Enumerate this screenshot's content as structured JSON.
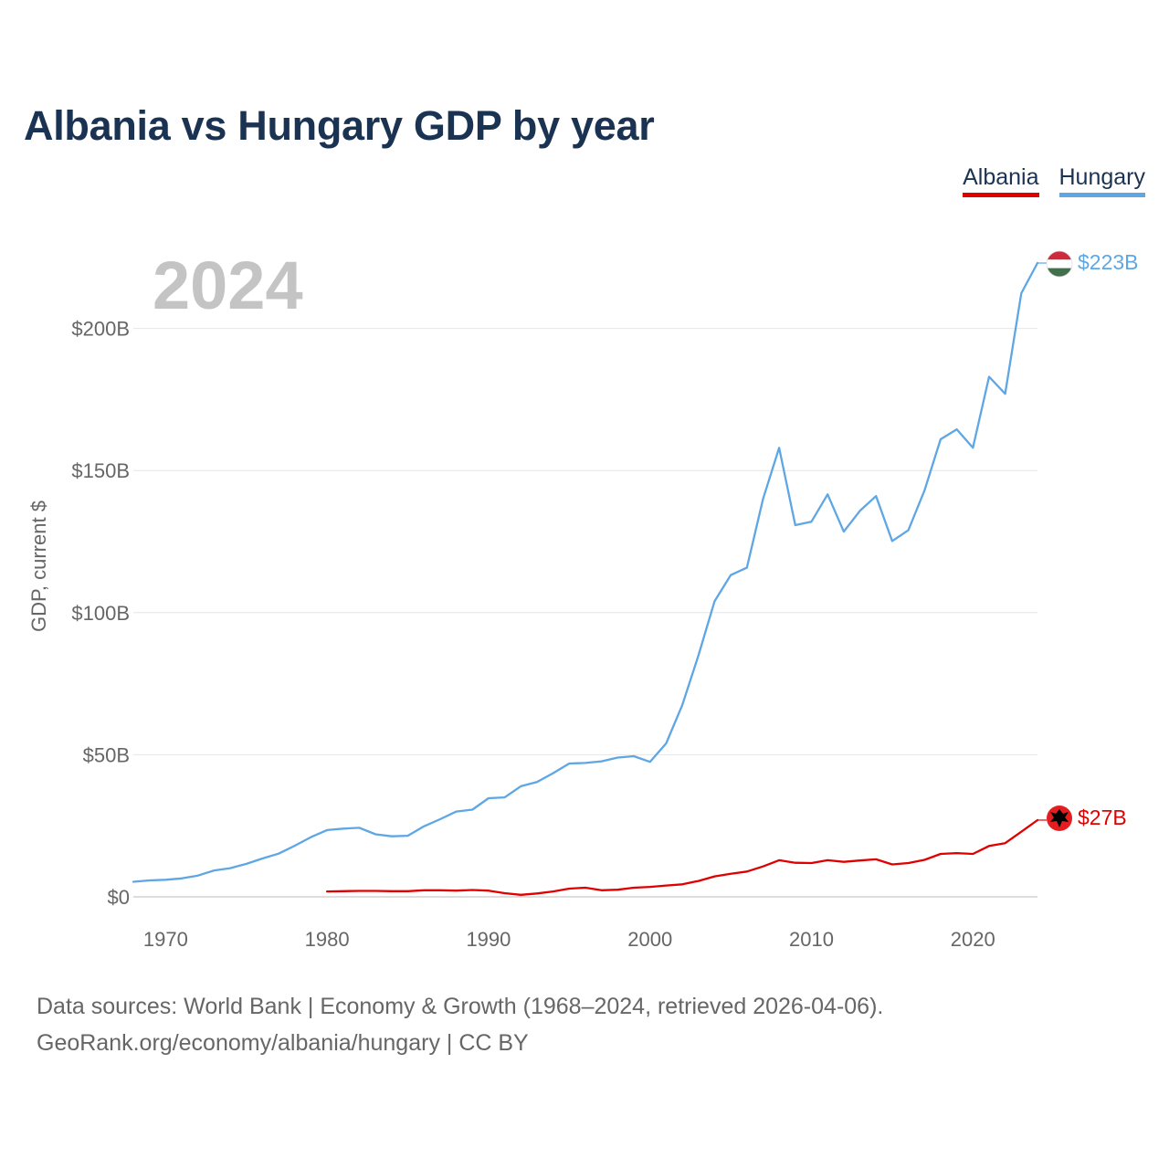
{
  "chart_data": {
    "type": "line",
    "title": "Albania vs Hungary GDP by year",
    "year_label": "2024",
    "ylabel": "GDP, current $",
    "xlabel": "",
    "xlim": [
      1968,
      2024
    ],
    "ylim": [
      0,
      223
    ],
    "x_ticks": [
      1970,
      1980,
      1990,
      2000,
      2010,
      2020
    ],
    "y_ticks": [
      {
        "value": 0,
        "label": "$0"
      },
      {
        "value": 50,
        "label": "$50B"
      },
      {
        "value": 100,
        "label": "$100B"
      },
      {
        "value": 150,
        "label": "$150B"
      },
      {
        "value": 200,
        "label": "$200B"
      }
    ],
    "legend": [
      "Albania",
      "Hungary"
    ],
    "series": [
      {
        "name": "Hungary",
        "color": "#5ea6e4",
        "end_label": "$223B",
        "x": [
          1968,
          1969,
          1970,
          1971,
          1972,
          1973,
          1974,
          1975,
          1976,
          1977,
          1978,
          1979,
          1980,
          1981,
          1982,
          1983,
          1984,
          1985,
          1986,
          1987,
          1988,
          1989,
          1990,
          1991,
          1992,
          1993,
          1994,
          1995,
          1996,
          1997,
          1998,
          1999,
          2000,
          2001,
          2002,
          2003,
          2004,
          2005,
          2006,
          2007,
          2008,
          2009,
          2010,
          2011,
          2012,
          2013,
          2014,
          2015,
          2016,
          2017,
          2018,
          2019,
          2020,
          2021,
          2022,
          2023,
          2024
        ],
        "values": [
          5.3,
          5.8,
          6.0,
          6.5,
          7.5,
          9.3,
          10.1,
          11.6,
          13.5,
          15.2,
          18.0,
          21.0,
          23.5,
          24.0,
          24.3,
          22.0,
          21.3,
          21.5,
          24.8,
          27.3,
          30.0,
          30.7,
          34.7,
          35.0,
          38.9,
          40.4,
          43.5,
          46.9,
          47.1,
          47.7,
          49.0,
          49.5,
          47.5,
          54.0,
          67.5,
          85.0,
          104.0,
          113.2,
          115.8,
          140.0,
          158.0,
          130.8,
          132.0,
          141.6,
          128.5,
          135.8,
          141.0,
          125.2,
          129.0,
          143.0,
          161.0,
          164.5,
          158.0,
          183.0,
          177.0,
          212.4,
          223.0
        ]
      },
      {
        "name": "Albania",
        "color": "#e00000",
        "end_label": "$27B",
        "x": [
          1980,
          1981,
          1982,
          1983,
          1984,
          1985,
          1986,
          1987,
          1988,
          1989,
          1990,
          1991,
          1992,
          1993,
          1994,
          1995,
          1996,
          1997,
          1998,
          1999,
          2000,
          2001,
          2002,
          2003,
          2004,
          2005,
          2006,
          2007,
          2008,
          2009,
          2010,
          2011,
          2012,
          2013,
          2014,
          2015,
          2016,
          2017,
          2018,
          2019,
          2020,
          2021,
          2022,
          2023,
          2024
        ],
        "values": [
          1.9,
          2.0,
          2.1,
          2.1,
          2.0,
          2.0,
          2.3,
          2.3,
          2.2,
          2.4,
          2.2,
          1.3,
          0.7,
          1.2,
          1.9,
          2.9,
          3.2,
          2.3,
          2.5,
          3.2,
          3.5,
          4.0,
          4.4,
          5.6,
          7.2,
          8.1,
          8.9,
          10.7,
          12.9,
          12.0,
          11.9,
          12.9,
          12.3,
          12.8,
          13.2,
          11.4,
          11.9,
          13.0,
          15.1,
          15.4,
          15.1,
          17.9,
          18.9,
          22.9,
          27.0
        ]
      }
    ]
  },
  "source": {
    "line1": "Data sources: World Bank | Economy & Growth (1968–2024, retrieved 2026-04-06).",
    "line2": "GeoRank.org/economy/albania/hungary | CC BY"
  }
}
